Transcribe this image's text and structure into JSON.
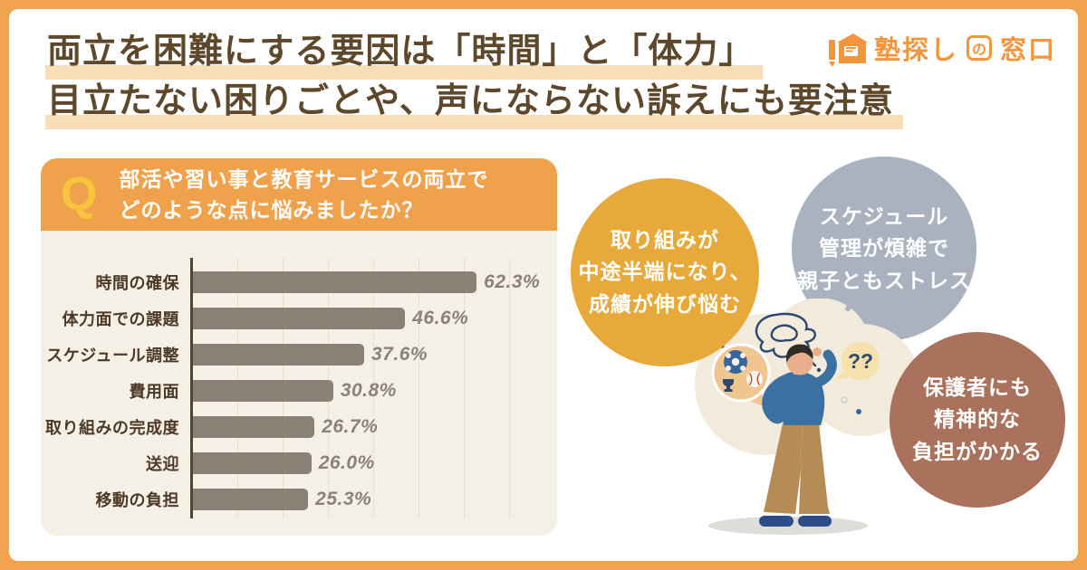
{
  "page": {
    "frame_color": "#F2A34D",
    "panel_color": "#FFFFFF"
  },
  "header": {
    "title_lines": [
      "両立を困難にする要因は「時間」と「体力」",
      "目立たない困りごとや、声にならない訴えにも要注意"
    ],
    "title_color": "#5D482B",
    "highlight_color": "#F9DDB6"
  },
  "logo": {
    "full_text": "塾探しの窓口",
    "part_main": "塾探し",
    "part_no": "の",
    "part_window": "窓口",
    "color": "#F2963D"
  },
  "question": {
    "q_label": "Q",
    "lines": [
      "部活や習い事と教育サービスの両立で",
      "どのような点に悩みましたか？"
    ],
    "header_color": "#F0A14C",
    "q_color": "#F6C53D",
    "body_color": "#F5F0E6"
  },
  "chart_data": {
    "type": "bar",
    "orientation": "horizontal",
    "title": "部活や習い事と教育サービスの両立でどのような点に悩みましたか？",
    "categories": [
      "時間の確保",
      "体力面での課題",
      "スケジュール調整",
      "費用面",
      "取り組みの完成度",
      "送迎",
      "移動の負担"
    ],
    "values": [
      62.3,
      46.6,
      37.6,
      30.8,
      26.7,
      26.0,
      25.3
    ],
    "value_labels": [
      "62.3%",
      "46.6%",
      "37.6%",
      "30.8%",
      "26.7%",
      "26.0%",
      "25.3%"
    ],
    "unit": "%",
    "xlim": [
      0,
      75
    ],
    "grid": true,
    "legend": false,
    "bar_color": "#8B8076",
    "label_color": "#4C3A27",
    "value_color": "#8B8178"
  },
  "callouts": [
    {
      "lines": [
        "取り組みが",
        "中途半端になり、",
        "成績が伸び悩む"
      ],
      "color": "#E7A93A"
    },
    {
      "lines": [
        "スケジュール",
        "管理が煩雑で",
        "親子ともストレス"
      ],
      "color": "#A9B2BE"
    },
    {
      "lines": [
        "保護者にも",
        "精神的な",
        "負担がかかる"
      ],
      "color": "#AA715C"
    }
  ],
  "illustration": {
    "question_marks": "??"
  }
}
